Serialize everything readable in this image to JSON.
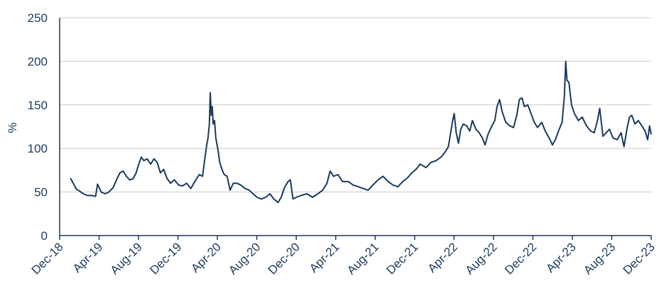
{
  "chart_data": {
    "type": "line",
    "title": "",
    "xlabel": "",
    "ylabel": "%",
    "ylim": [
      0,
      250
    ],
    "yticks": [
      0,
      50,
      100,
      150,
      200,
      250
    ],
    "xlim": [
      "2018-12-01",
      "2023-12-01"
    ],
    "xtick_labels": [
      "Dec-18",
      "Apr-19",
      "Aug-19",
      "Dec-19",
      "Apr-20",
      "Aug-20",
      "Dec-20",
      "Apr-21",
      "Aug-21",
      "Dec-21",
      "Apr-22",
      "Aug-22",
      "Dec-22",
      "Apr-23",
      "Aug-23",
      "Dec-23"
    ],
    "grid": "horizontal",
    "legend": "none",
    "line_color": "#1b3a5c",
    "grid_color": "#cccccc",
    "series": [
      {
        "values": [
          [
            "2019-01-03",
            66
          ],
          [
            "2019-01-12",
            60
          ],
          [
            "2019-01-22",
            53
          ],
          [
            "2019-02-01",
            51
          ],
          [
            "2019-02-12",
            48
          ],
          [
            "2019-02-25",
            46
          ],
          [
            "2019-03-10",
            46
          ],
          [
            "2019-03-22",
            45
          ],
          [
            "2019-03-28",
            59
          ],
          [
            "2019-04-08",
            50
          ],
          [
            "2019-04-20",
            48
          ],
          [
            "2019-05-02",
            50
          ],
          [
            "2019-05-15",
            55
          ],
          [
            "2019-05-28",
            66
          ],
          [
            "2019-06-05",
            72
          ],
          [
            "2019-06-15",
            74
          ],
          [
            "2019-06-25",
            68
          ],
          [
            "2019-07-05",
            64
          ],
          [
            "2019-07-15",
            65
          ],
          [
            "2019-07-25",
            72
          ],
          [
            "2019-08-03",
            83
          ],
          [
            "2019-08-10",
            90
          ],
          [
            "2019-08-18",
            86
          ],
          [
            "2019-08-28",
            88
          ],
          [
            "2019-09-08",
            82
          ],
          [
            "2019-09-18",
            88
          ],
          [
            "2019-09-28",
            84
          ],
          [
            "2019-10-08",
            72
          ],
          [
            "2019-10-18",
            76
          ],
          [
            "2019-10-28",
            66
          ],
          [
            "2019-11-08",
            60
          ],
          [
            "2019-11-20",
            64
          ],
          [
            "2019-12-03",
            58
          ],
          [
            "2019-12-15",
            57
          ],
          [
            "2019-12-28",
            60
          ],
          [
            "2020-01-10",
            54
          ],
          [
            "2020-01-22",
            62
          ],
          [
            "2020-02-05",
            70
          ],
          [
            "2020-02-15",
            68
          ],
          [
            "2020-02-22",
            88
          ],
          [
            "2020-02-28",
            104
          ],
          [
            "2020-03-03",
            112
          ],
          [
            "2020-03-07",
            128
          ],
          [
            "2020-03-10",
            164
          ],
          [
            "2020-03-13",
            138
          ],
          [
            "2020-03-16",
            148
          ],
          [
            "2020-03-19",
            128
          ],
          [
            "2020-03-23",
            132
          ],
          [
            "2020-03-27",
            112
          ],
          [
            "2020-04-02",
            100
          ],
          [
            "2020-04-08",
            84
          ],
          [
            "2020-04-15",
            76
          ],
          [
            "2020-04-22",
            70
          ],
          [
            "2020-05-01",
            68
          ],
          [
            "2020-05-10",
            52
          ],
          [
            "2020-05-20",
            60
          ],
          [
            "2020-06-01",
            60
          ],
          [
            "2020-06-12",
            58
          ],
          [
            "2020-06-25",
            54
          ],
          [
            "2020-07-08",
            52
          ],
          [
            "2020-07-20",
            48
          ],
          [
            "2020-08-01",
            44
          ],
          [
            "2020-08-15",
            42
          ],
          [
            "2020-08-28",
            44
          ],
          [
            "2020-09-10",
            48
          ],
          [
            "2020-09-22",
            42
          ],
          [
            "2020-10-05",
            38
          ],
          [
            "2020-10-15",
            44
          ],
          [
            "2020-10-25",
            55
          ],
          [
            "2020-11-05",
            62
          ],
          [
            "2020-11-12",
            64
          ],
          [
            "2020-11-20",
            42
          ],
          [
            "2020-12-01",
            44
          ],
          [
            "2020-12-15",
            46
          ],
          [
            "2021-01-02",
            48
          ],
          [
            "2021-01-20",
            44
          ],
          [
            "2021-02-05",
            48
          ],
          [
            "2021-02-20",
            52
          ],
          [
            "2021-03-05",
            60
          ],
          [
            "2021-03-15",
            74
          ],
          [
            "2021-03-25",
            68
          ],
          [
            "2021-04-08",
            70
          ],
          [
            "2021-04-22",
            62
          ],
          [
            "2021-05-10",
            62
          ],
          [
            "2021-05-25",
            58
          ],
          [
            "2021-06-10",
            56
          ],
          [
            "2021-06-25",
            54
          ],
          [
            "2021-07-10",
            52
          ],
          [
            "2021-07-25",
            58
          ],
          [
            "2021-08-10",
            64
          ],
          [
            "2021-08-25",
            68
          ],
          [
            "2021-09-10",
            62
          ],
          [
            "2021-09-25",
            58
          ],
          [
            "2021-10-10",
            56
          ],
          [
            "2021-10-25",
            62
          ],
          [
            "2021-11-08",
            66
          ],
          [
            "2021-11-22",
            72
          ],
          [
            "2021-12-05",
            76
          ],
          [
            "2021-12-18",
            82
          ],
          [
            "2022-01-05",
            78
          ],
          [
            "2022-01-20",
            84
          ],
          [
            "2022-02-05",
            86
          ],
          [
            "2022-02-20",
            90
          ],
          [
            "2022-03-05",
            96
          ],
          [
            "2022-03-15",
            102
          ],
          [
            "2022-03-22",
            118
          ],
          [
            "2022-03-28",
            132
          ],
          [
            "2022-04-02",
            140
          ],
          [
            "2022-04-08",
            118
          ],
          [
            "2022-04-15",
            106
          ],
          [
            "2022-04-22",
            122
          ],
          [
            "2022-04-30",
            128
          ],
          [
            "2022-05-10",
            126
          ],
          [
            "2022-05-20",
            120
          ],
          [
            "2022-05-28",
            132
          ],
          [
            "2022-06-08",
            122
          ],
          [
            "2022-06-18",
            118
          ],
          [
            "2022-06-28",
            112
          ],
          [
            "2022-07-06",
            104
          ],
          [
            "2022-07-15",
            116
          ],
          [
            "2022-07-25",
            124
          ],
          [
            "2022-08-05",
            132
          ],
          [
            "2022-08-12",
            148
          ],
          [
            "2022-08-20",
            156
          ],
          [
            "2022-08-28",
            142
          ],
          [
            "2022-09-08",
            130
          ],
          [
            "2022-09-20",
            126
          ],
          [
            "2022-10-02",
            124
          ],
          [
            "2022-10-12",
            138
          ],
          [
            "2022-10-20",
            156
          ],
          [
            "2022-10-28",
            158
          ],
          [
            "2022-11-05",
            148
          ],
          [
            "2022-11-15",
            150
          ],
          [
            "2022-11-25",
            140
          ],
          [
            "2022-12-05",
            130
          ],
          [
            "2022-12-15",
            124
          ],
          [
            "2022-12-28",
            130
          ],
          [
            "2023-01-08",
            120
          ],
          [
            "2023-01-20",
            112
          ],
          [
            "2023-01-30",
            104
          ],
          [
            "2023-02-08",
            110
          ],
          [
            "2023-02-20",
            122
          ],
          [
            "2023-03-01",
            130
          ],
          [
            "2023-03-08",
            160
          ],
          [
            "2023-03-12",
            200
          ],
          [
            "2023-03-16",
            178
          ],
          [
            "2023-03-22",
            176
          ],
          [
            "2023-03-30",
            150
          ],
          [
            "2023-04-08",
            140
          ],
          [
            "2023-04-20",
            132
          ],
          [
            "2023-05-02",
            136
          ],
          [
            "2023-05-15",
            126
          ],
          [
            "2023-05-28",
            120
          ],
          [
            "2023-06-08",
            118
          ],
          [
            "2023-06-18",
            132
          ],
          [
            "2023-06-25",
            146
          ],
          [
            "2023-07-05",
            114
          ],
          [
            "2023-07-15",
            118
          ],
          [
            "2023-07-25",
            122
          ],
          [
            "2023-08-05",
            112
          ],
          [
            "2023-08-18",
            110
          ],
          [
            "2023-08-30",
            118
          ],
          [
            "2023-09-08",
            102
          ],
          [
            "2023-09-18",
            124
          ],
          [
            "2023-09-25",
            136
          ],
          [
            "2023-10-02",
            138
          ],
          [
            "2023-10-12",
            128
          ],
          [
            "2023-10-22",
            132
          ],
          [
            "2023-11-02",
            126
          ],
          [
            "2023-11-12",
            120
          ],
          [
            "2023-11-20",
            110
          ],
          [
            "2023-11-26",
            126
          ],
          [
            "2023-12-01",
            116
          ]
        ]
      }
    ]
  }
}
